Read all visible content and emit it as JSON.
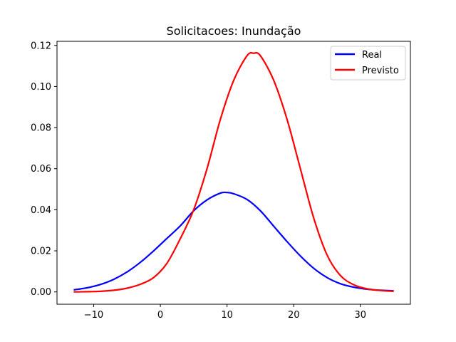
{
  "chart_data": {
    "type": "line",
    "title": "Solicitacoes: Inundação",
    "xlabel": "",
    "ylabel": "",
    "xlim": [
      -15.5,
      37.5
    ],
    "ylim": [
      -0.006,
      0.122
    ],
    "xticks": [
      -10,
      0,
      10,
      20,
      30
    ],
    "xtick_labels": [
      "−10",
      "0",
      "10",
      "20",
      "30"
    ],
    "yticks": [
      0.0,
      0.02,
      0.04,
      0.06,
      0.08,
      0.1,
      0.12
    ],
    "ytick_labels": [
      "0.00",
      "0.02",
      "0.04",
      "0.06",
      "0.08",
      "0.10",
      "0.12"
    ],
    "grid": false,
    "legend": "top-right",
    "series": [
      {
        "name": "Real",
        "color": "#0000ff",
        "x": [
          -13,
          -11,
          -9,
          -7,
          -5,
          -3,
          -1,
          1,
          3,
          5,
          7,
          9,
          10,
          11,
          13,
          15,
          17,
          19,
          21,
          23,
          25,
          27,
          29,
          31,
          33,
          35
        ],
        "y": [
          0.001,
          0.002,
          0.0036,
          0.0061,
          0.0097,
          0.0144,
          0.02,
          0.0261,
          0.0322,
          0.0395,
          0.0448,
          0.0481,
          0.0484,
          0.0478,
          0.045,
          0.0395,
          0.032,
          0.0245,
          0.0175,
          0.0115,
          0.007,
          0.004,
          0.0023,
          0.0013,
          0.0008,
          0.0005
        ]
      },
      {
        "name": "Previsto",
        "color": "#ff0000",
        "x": [
          -13,
          -11,
          -9,
          -7,
          -5,
          -3,
          -1,
          1,
          3,
          5,
          7,
          9,
          11,
          13,
          14,
          15,
          17,
          19,
          21,
          23,
          25,
          27,
          29,
          31,
          33,
          35
        ],
        "y": [
          0.0,
          0.0001,
          0.0003,
          0.0008,
          0.0018,
          0.0037,
          0.007,
          0.014,
          0.026,
          0.04,
          0.06,
          0.084,
          0.103,
          0.115,
          0.1162,
          0.115,
          0.103,
          0.084,
          0.06,
          0.036,
          0.018,
          0.008,
          0.0035,
          0.0015,
          0.0007,
          0.0003
        ]
      }
    ]
  }
}
